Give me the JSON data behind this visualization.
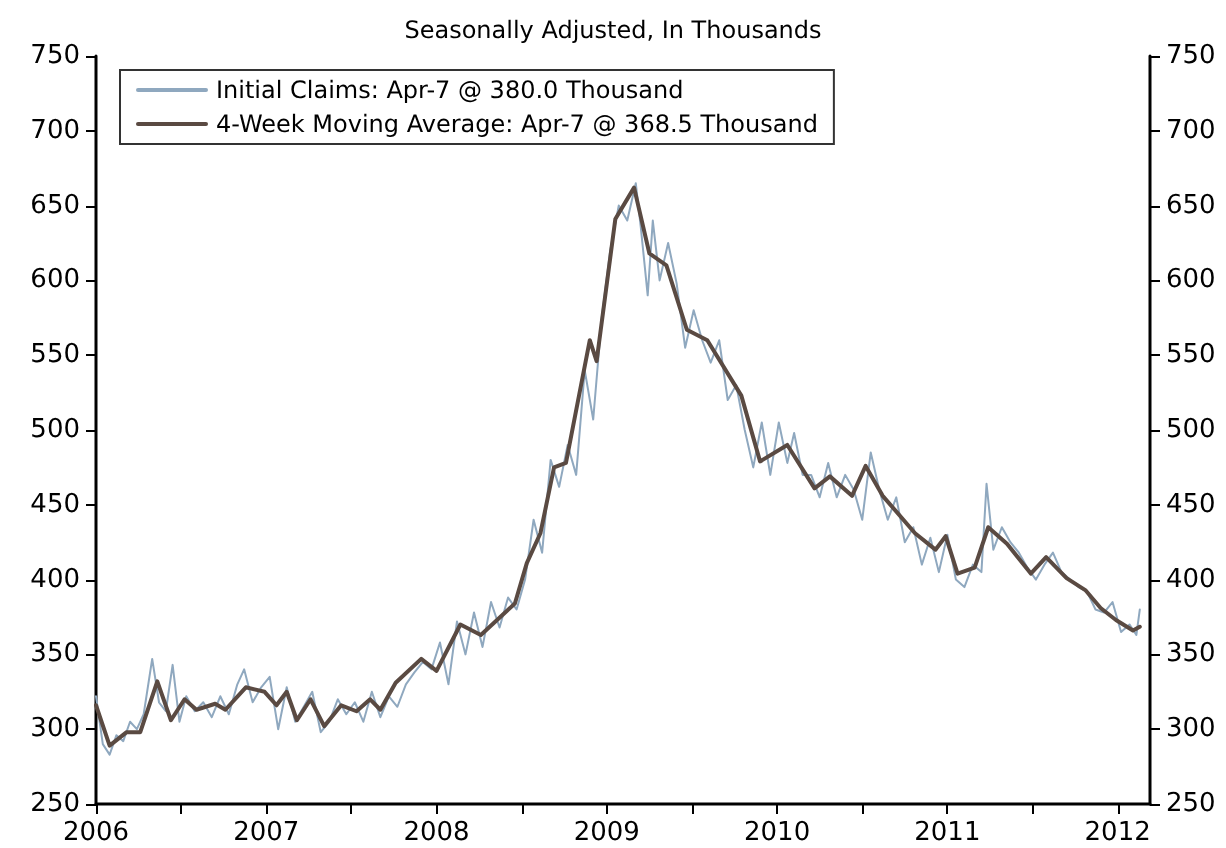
{
  "chart_data": {
    "type": "line",
    "subtitle": "Seasonally Adjusted, In Thousands",
    "xlim": [
      2006,
      2012.19
    ],
    "xticks": [
      {
        "value": 2006,
        "label": "2006"
      },
      {
        "value": 2006.5,
        "label": null
      },
      {
        "value": 2007,
        "label": "2007"
      },
      {
        "value": 2007.5,
        "label": null
      },
      {
        "value": 2008,
        "label": "2008"
      },
      {
        "value": 2008.5,
        "label": null
      },
      {
        "value": 2009,
        "label": "2009"
      },
      {
        "value": 2009.5,
        "label": null
      },
      {
        "value": 2010,
        "label": "2010"
      },
      {
        "value": 2010.5,
        "label": null
      },
      {
        "value": 2011,
        "label": "2011"
      },
      {
        "value": 2011.5,
        "label": null
      },
      {
        "value": 2012,
        "label": "2012"
      }
    ],
    "ylim": [
      250,
      750
    ],
    "yticks": [
      250,
      300,
      350,
      400,
      450,
      500,
      550,
      600,
      650,
      700,
      750
    ],
    "y2lim": [
      250,
      750
    ],
    "y2ticks": [
      250,
      300,
      350,
      400,
      450,
      500,
      550,
      600,
      650,
      700,
      750
    ],
    "grid": false,
    "legend": "top left",
    "marker": "none",
    "line_style": "solid",
    "series": [
      {
        "name": "Initial Claims: Apr-7 @ 380.0 Thousand",
        "color": "#8fa8bf",
        "x": [
          2006,
          2006.04,
          2006.08,
          2006.12,
          2006.16,
          2006.2,
          2006.24,
          2006.28,
          2006.33,
          2006.37,
          2006.41,
          2006.45,
          2006.49,
          2006.53,
          2006.58,
          2006.63,
          2006.68,
          2006.73,
          2006.78,
          2006.83,
          2006.87,
          2006.92,
          2006.97,
          2007.02,
          2007.07,
          2007.12,
          2007.17,
          2007.22,
          2007.27,
          2007.32,
          2007.37,
          2007.42,
          2007.47,
          2007.52,
          2007.57,
          2007.62,
          2007.67,
          2007.72,
          2007.77,
          2007.82,
          2007.87,
          2007.92,
          2007.97,
          2008.02,
          2008.07,
          2008.12,
          2008.17,
          2008.22,
          2008.27,
          2008.32,
          2008.37,
          2008.42,
          2008.47,
          2008.52,
          2008.57,
          2008.62,
          2008.67,
          2008.72,
          2008.77,
          2008.82,
          2008.87,
          2008.92,
          2008.97,
          2009.02,
          2009.07,
          2009.12,
          2009.17,
          2009.2,
          2009.24,
          2009.27,
          2009.31,
          2009.36,
          2009.41,
          2009.46,
          2009.51,
          2009.56,
          2009.61,
          2009.66,
          2009.71,
          2009.76,
          2009.81,
          2009.86,
          2009.91,
          2009.96,
          2010.01,
          2010.06,
          2010.1,
          2010.15,
          2010.2,
          2010.25,
          2010.3,
          2010.35,
          2010.4,
          2010.45,
          2010.5,
          2010.55,
          2010.6,
          2010.65,
          2010.7,
          2010.75,
          2010.8,
          2010.85,
          2010.9,
          2010.95,
          2011,
          2011.05,
          2011.1,
          2011.15,
          2011.2,
          2011.23,
          2011.27,
          2011.32,
          2011.37,
          2011.42,
          2011.47,
          2011.52,
          2011.57,
          2011.62,
          2011.67,
          2011.72,
          2011.77,
          2011.82,
          2011.87,
          2011.92,
          2011.97,
          2012.02,
          2012.07,
          2012.11,
          2012.13
        ],
        "values": [
          322,
          290,
          283,
          296,
          292,
          305,
          300,
          310,
          347,
          318,
          312,
          343,
          305,
          322,
          312,
          318,
          308,
          322,
          310,
          330,
          340,
          318,
          328,
          335,
          300,
          328,
          305,
          315,
          325,
          298,
          305,
          320,
          310,
          318,
          305,
          325,
          308,
          322,
          315,
          330,
          338,
          345,
          340,
          358,
          330,
          372,
          350,
          378,
          355,
          385,
          368,
          388,
          380,
          400,
          440,
          418,
          480,
          462,
          490,
          470,
          540,
          507,
          575,
          620,
          650,
          640,
          665,
          635,
          590,
          640,
          600,
          625,
          598,
          555,
          580,
          560,
          545,
          560,
          520,
          530,
          500,
          475,
          505,
          470,
          505,
          478,
          498,
          470,
          470,
          455,
          478,
          455,
          470,
          460,
          440,
          485,
          460,
          440,
          455,
          425,
          435,
          410,
          428,
          405,
          430,
          400,
          395,
          410,
          405,
          464,
          420,
          435,
          425,
          418,
          408,
          400,
          410,
          418,
          405,
          400,
          395,
          392,
          380,
          378,
          385,
          365,
          370,
          363,
          380
        ]
      },
      {
        "name": "4-Week Moving Average: Apr-7 @ 368.5 Thousand",
        "color": "#5a4a42",
        "x": [
          2006,
          2006.08,
          2006.18,
          2006.26,
          2006.36,
          2006.44,
          2006.52,
          2006.59,
          2006.7,
          2006.76,
          2006.88,
          2006.99,
          2007.06,
          2007.12,
          2007.18,
          2007.26,
          2007.34,
          2007.44,
          2007.53,
          2007.61,
          2007.67,
          2007.76,
          2007.91,
          2008,
          2008.14,
          2008.26,
          2008.46,
          2008.53,
          2008.61,
          2008.69,
          2008.76,
          2008.9,
          2008.94,
          2009.05,
          2009.16,
          2009.25,
          2009.35,
          2009.47,
          2009.59,
          2009.79,
          2009.9,
          2010.06,
          2010.22,
          2010.31,
          2010.44,
          2010.52,
          2010.62,
          2010.81,
          2010.93,
          2010.99,
          2011.06,
          2011.16,
          2011.24,
          2011.35,
          2011.49,
          2011.58,
          2011.7,
          2011.81,
          2011.9,
          2011.99,
          2012.09,
          2012.13
        ],
        "values": [
          316,
          289,
          298,
          298,
          332,
          306,
          320,
          313,
          317,
          313,
          328,
          325,
          316,
          325,
          306,
          320,
          302,
          316,
          312,
          320,
          313,
          331,
          347,
          339,
          370,
          363,
          384,
          411,
          431,
          475,
          478,
          560,
          546,
          641,
          662,
          618,
          610,
          567,
          560,
          523,
          479,
          490,
          461,
          469,
          456,
          476,
          456,
          431,
          420,
          429,
          404,
          408,
          435,
          424,
          404,
          415,
          401,
          393,
          381,
          373,
          366,
          368.5
        ]
      }
    ]
  }
}
